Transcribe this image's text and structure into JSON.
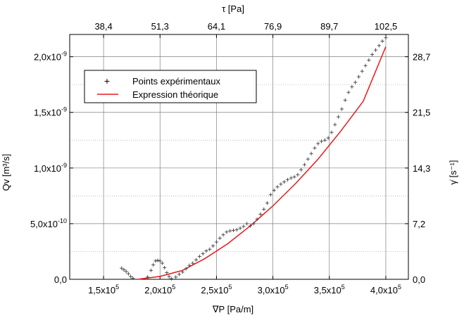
{
  "chart_data": {
    "type": "scatter",
    "xlabel": "∇P  [Pa/m]",
    "ylabel": "Qv  [m³/s]",
    "top_axis_label": "τ [Pa]",
    "right_axis_label": "γ̇ [s⁻¹]",
    "xlim": [
      120000,
      420000
    ],
    "ylim": [
      0,
      2.2e-09
    ],
    "x_ticks": [
      {
        "value": 150000,
        "mantissa": "1,5x10",
        "exp": "5"
      },
      {
        "value": 200000,
        "mantissa": "2,0x10",
        "exp": "5"
      },
      {
        "value": 250000,
        "mantissa": "2,5x10",
        "exp": "5"
      },
      {
        "value": 300000,
        "mantissa": "3,0x10",
        "exp": "5"
      },
      {
        "value": 350000,
        "mantissa": "3,5x10",
        "exp": "5"
      },
      {
        "value": 400000,
        "mantissa": "4,0x10",
        "exp": "5"
      }
    ],
    "y_ticks": [
      {
        "value": 0,
        "mantissa": "0,0",
        "exp": ""
      },
      {
        "value": 5e-10,
        "mantissa": "5,0x10",
        "exp": "-10"
      },
      {
        "value": 1e-09,
        "mantissa": "1,0x10",
        "exp": "-9"
      },
      {
        "value": 1.5e-09,
        "mantissa": "1,5x10",
        "exp": "-9"
      },
      {
        "value": 2e-09,
        "mantissa": "2,0x10",
        "exp": "-9"
      }
    ],
    "top_ticks": [
      {
        "x": 150000,
        "label": "38,4"
      },
      {
        "x": 200000,
        "label": "51,3"
      },
      {
        "x": 250000,
        "label": "64,1"
      },
      {
        "x": 300000,
        "label": "76,9"
      },
      {
        "x": 350000,
        "label": "89,7"
      },
      {
        "x": 400000,
        "label": "102,5"
      }
    ],
    "right_ticks": [
      {
        "y": 0,
        "label": "0,0"
      },
      {
        "y": 5e-10,
        "label": "7,2"
      },
      {
        "y": 1e-09,
        "label": "14,3"
      },
      {
        "y": 1.5e-09,
        "label": "21,5"
      },
      {
        "y": 2e-09,
        "label": "28,7"
      }
    ],
    "grid": true,
    "legend_position": "top-left",
    "series": [
      {
        "name": "Points expérimentaux",
        "style": "plus-markers",
        "color": "#404040",
        "points": [
          [
            166000,
            1e-10
          ],
          [
            168000,
            8.5e-11
          ],
          [
            170000,
            7e-11
          ],
          [
            172000,
            5e-11
          ],
          [
            174000,
            2.5e-11
          ],
          [
            176000,
            1e-11
          ],
          [
            189000,
            2e-11
          ],
          [
            192000,
            8e-11
          ],
          [
            194000,
            1.3e-10
          ],
          [
            196000,
            1.65e-10
          ],
          [
            198000,
            1.7e-10
          ],
          [
            200000,
            1.65e-10
          ],
          [
            202000,
            1.45e-10
          ],
          [
            204000,
            1.05e-10
          ],
          [
            206000,
            6e-11
          ],
          [
            208000,
            2.5e-11
          ],
          [
            210000,
            5e-12
          ],
          [
            214000,
            2e-11
          ],
          [
            217000,
            4.5e-11
          ],
          [
            220000,
            6.5e-11
          ],
          [
            223000,
            9.5e-11
          ],
          [
            226000,
            1.25e-10
          ],
          [
            229000,
            1.45e-10
          ],
          [
            232000,
            1.75e-10
          ],
          [
            235000,
            2.05e-10
          ],
          [
            238000,
            2.3e-10
          ],
          [
            241000,
            2.55e-10
          ],
          [
            244000,
            2.7e-10
          ],
          [
            247000,
            3e-10
          ],
          [
            250000,
            3.35e-10
          ],
          [
            253000,
            3.7e-10
          ],
          [
            256000,
            4e-10
          ],
          [
            259000,
            4.25e-10
          ],
          [
            262000,
            4.35e-10
          ],
          [
            265000,
            4.4e-10
          ],
          [
            268000,
            4.45e-10
          ],
          [
            271000,
            4.6e-10
          ],
          [
            274000,
            4.75e-10
          ],
          [
            277000,
            5e-10
          ],
          [
            280000,
            4.8e-10
          ],
          [
            283000,
            5e-10
          ],
          [
            286000,
            5.4e-10
          ],
          [
            289000,
            5.85e-10
          ],
          [
            292000,
            6.3e-10
          ],
          [
            295000,
            6.85e-10
          ],
          [
            298000,
            7.6e-10
          ],
          [
            301000,
            8e-10
          ],
          [
            304000,
            8.3e-10
          ],
          [
            307000,
            8.55e-10
          ],
          [
            310000,
            8.75e-10
          ],
          [
            313000,
            8.95e-10
          ],
          [
            316000,
            9.1e-10
          ],
          [
            319000,
            9.2e-10
          ],
          [
            322000,
            9.4e-10
          ],
          [
            325000,
            9.85e-10
          ],
          [
            328000,
            1.03e-09
          ],
          [
            331000,
            1.08e-09
          ],
          [
            334000,
            1.13e-09
          ],
          [
            337000,
            1.18e-09
          ],
          [
            340000,
            1.22e-09
          ],
          [
            343000,
            1.24e-09
          ],
          [
            346000,
            1.25e-09
          ],
          [
            349000,
            1.27e-09
          ],
          [
            352000,
            1.32e-09
          ],
          [
            355000,
            1.39e-09
          ],
          [
            358000,
            1.46e-09
          ],
          [
            361000,
            1.53e-09
          ],
          [
            364000,
            1.61e-09
          ],
          [
            367000,
            1.68e-09
          ],
          [
            370000,
            1.73e-09
          ],
          [
            373000,
            1.77e-09
          ],
          [
            376000,
            1.82e-09
          ],
          [
            379000,
            1.87e-09
          ],
          [
            382000,
            1.92e-09
          ],
          [
            385000,
            1.97e-09
          ],
          [
            388000,
            2.02e-09
          ],
          [
            391000,
            2.06e-09
          ],
          [
            394000,
            2.1e-09
          ],
          [
            397000,
            2.14e-09
          ],
          [
            400000,
            2.17e-09
          ]
        ]
      },
      {
        "name": "Expression théorique",
        "style": "line",
        "color": "#e8191b",
        "points": [
          [
            180000,
            0
          ],
          [
            200000,
            2.6e-11
          ],
          [
            220000,
            8e-11
          ],
          [
            240000,
            1.88e-10
          ],
          [
            260000,
            3.2e-10
          ],
          [
            280000,
            4.8e-10
          ],
          [
            300000,
            6.6e-10
          ],
          [
            320000,
            8.6e-10
          ],
          [
            340000,
            1.08e-09
          ],
          [
            360000,
            1.33e-09
          ],
          [
            380000,
            1.6e-09
          ],
          [
            400000,
            2.09e-09
          ]
        ]
      }
    ]
  }
}
